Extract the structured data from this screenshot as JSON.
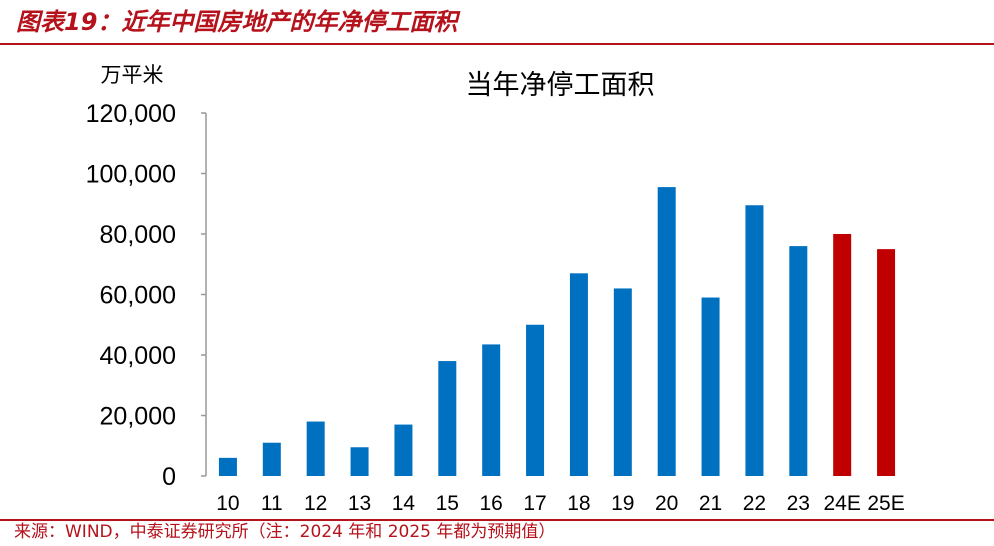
{
  "figure": {
    "title": "图表19：近年中国房地产的年净停工面积",
    "source": "来源：WIND，中泰证券研究所（注：2024 年和 2025 年都为预期值）"
  },
  "colors": {
    "accent": "#b5121b",
    "actual_bar": "#0070c0",
    "estimate_bar": "#c00000"
  },
  "chart_data": {
    "type": "bar",
    "title": "当年净停工面积",
    "ylabel": "万平米",
    "xlabel": "",
    "categories": [
      "10",
      "11",
      "12",
      "13",
      "14",
      "15",
      "16",
      "17",
      "18",
      "19",
      "20",
      "21",
      "22",
      "23",
      "24E",
      "25E"
    ],
    "values": [
      6000,
      11000,
      18000,
      9500,
      17000,
      38000,
      43500,
      50000,
      67000,
      62000,
      95500,
      59000,
      89500,
      76000,
      80000,
      75000
    ],
    "estimate": [
      false,
      false,
      false,
      false,
      false,
      false,
      false,
      false,
      false,
      false,
      false,
      false,
      false,
      false,
      true,
      true
    ],
    "ylim": [
      0,
      120000
    ],
    "yticks": [
      0,
      20000,
      40000,
      60000,
      80000,
      100000,
      120000
    ],
    "ytick_labels": [
      "0",
      "20,000",
      "40,000",
      "60,000",
      "80,000",
      "100,000",
      "120,000"
    ],
    "grid": false,
    "legend": "none"
  }
}
